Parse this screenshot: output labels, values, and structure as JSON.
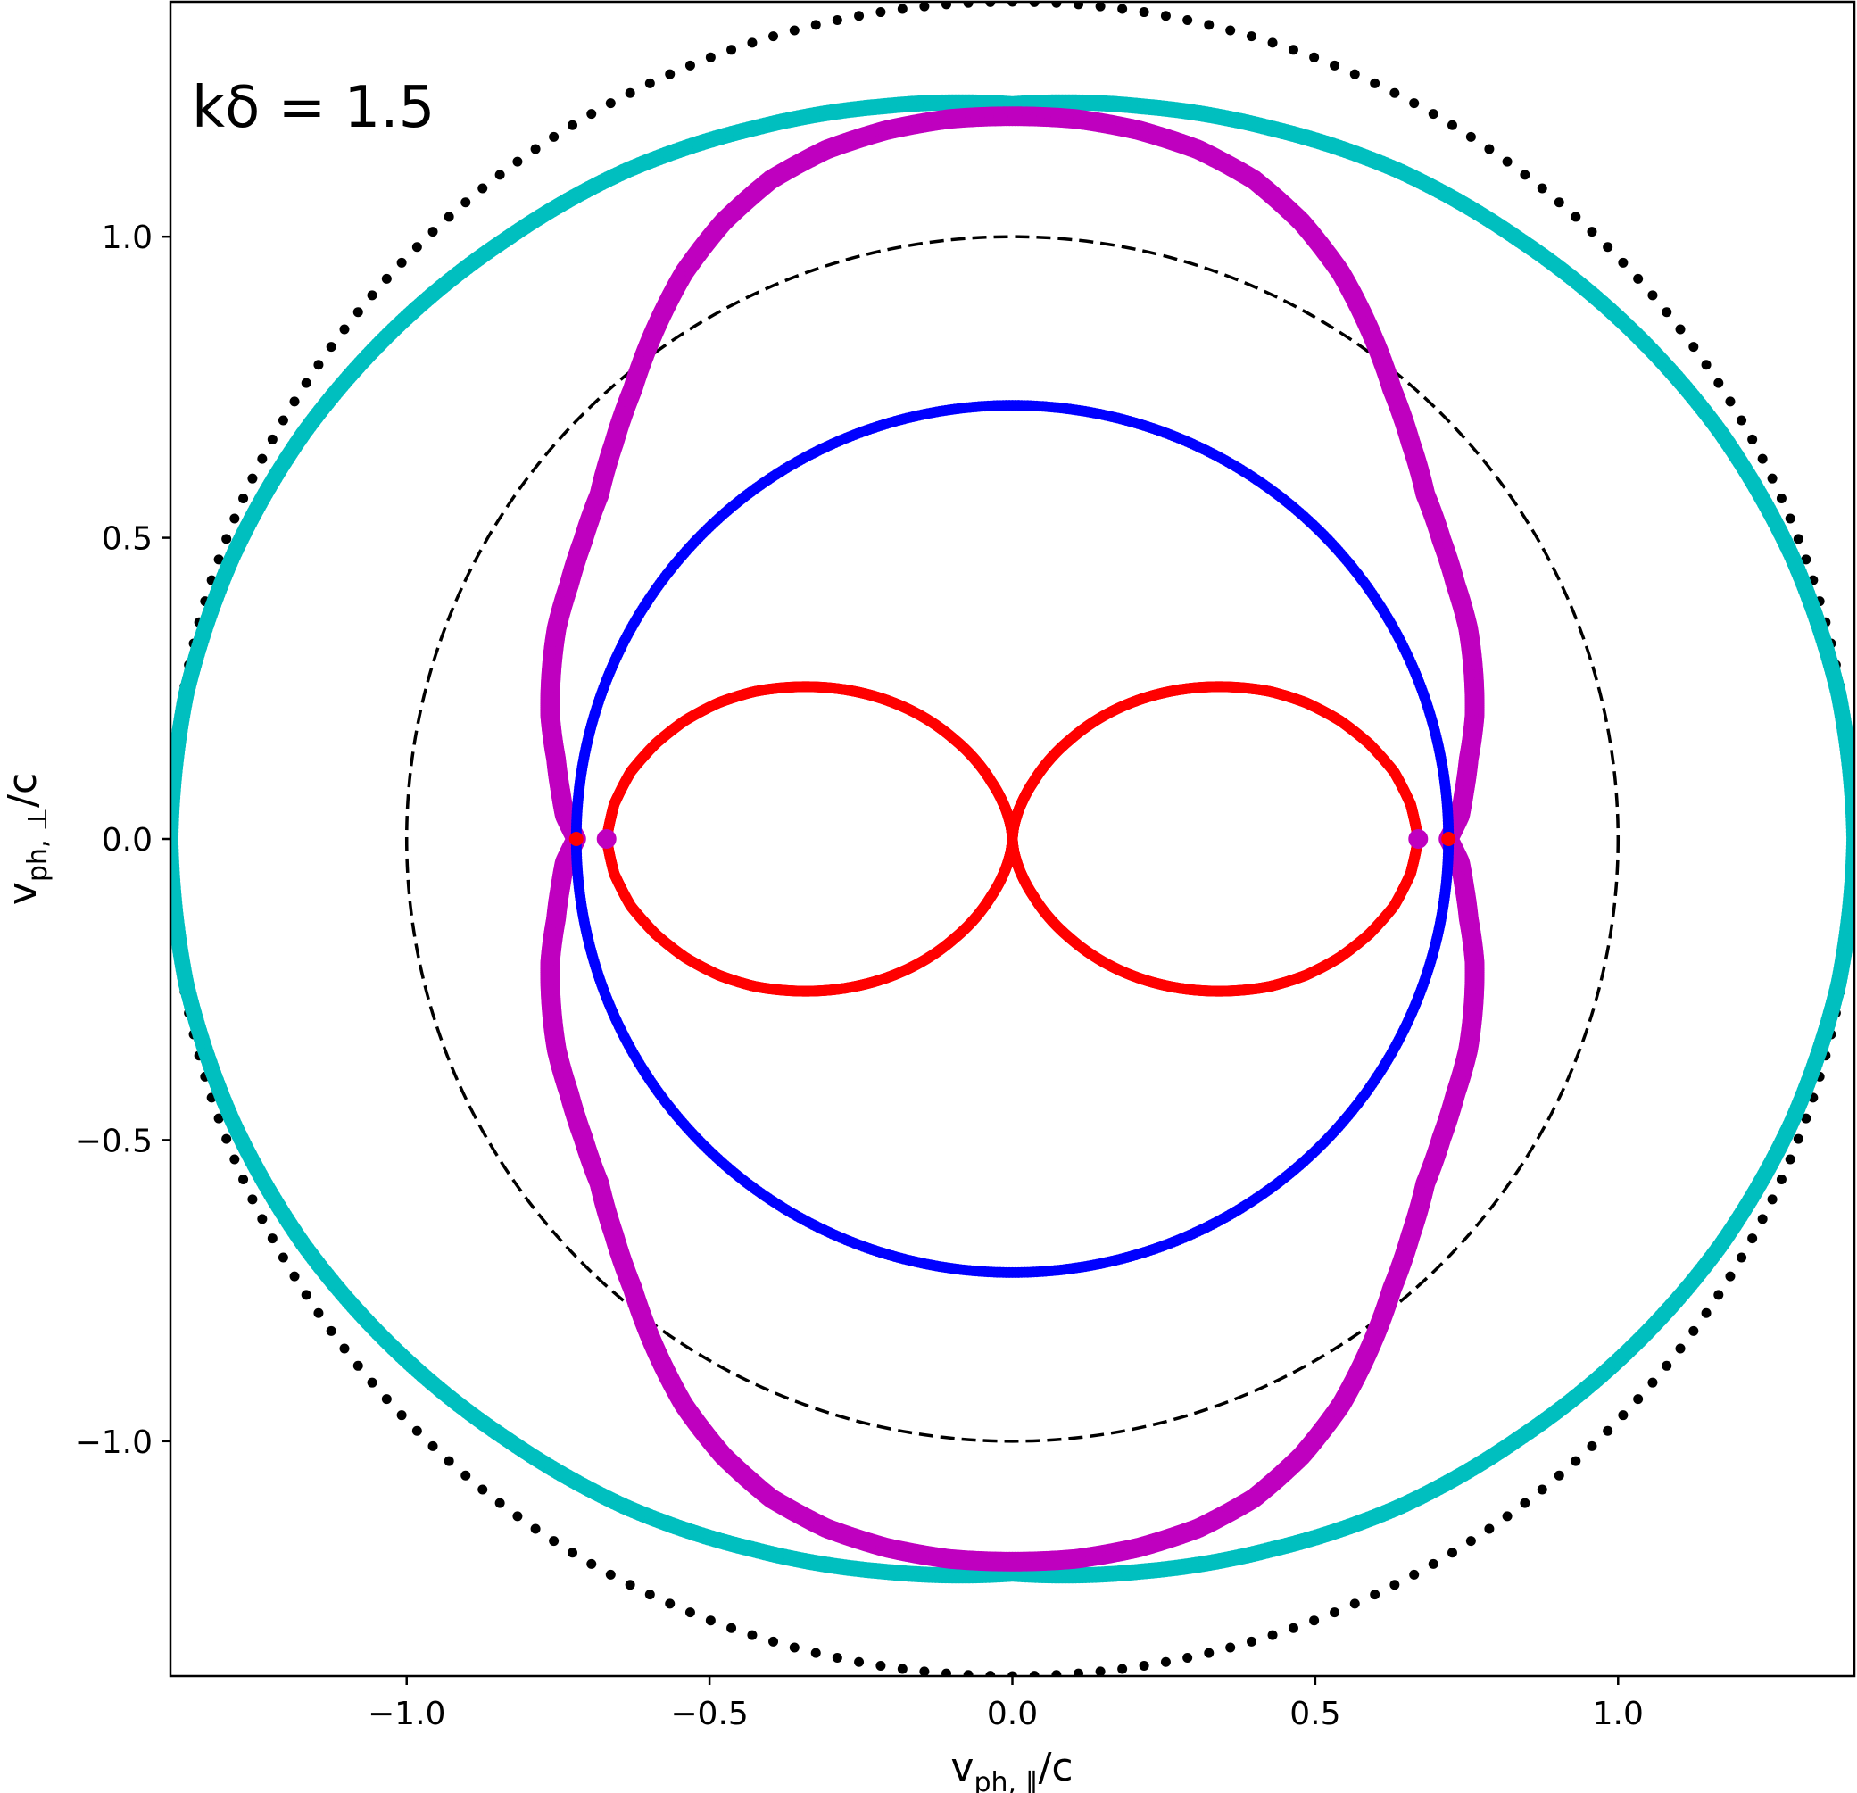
{
  "chart_data": {
    "type": "scatter",
    "annotation": "kδ = 1.5",
    "xlabel_base": "v",
    "xlabel_sub": "ph, ∥",
    "xlabel_tail": "/c",
    "ylabel_base": "v",
    "ylabel_sub": "ph, ⊥",
    "ylabel_tail": "/c",
    "xlim": [
      -1.39,
      1.39
    ],
    "ylim": [
      -1.39,
      1.39
    ],
    "xticks": [
      -1.0,
      -0.5,
      0.0,
      0.5,
      1.0
    ],
    "yticks": [
      -1.0,
      -0.5,
      0.0,
      0.5,
      1.0
    ],
    "xtick_labels": [
      "−1.0",
      "−0.5",
      "0.0",
      "0.5",
      "1.0"
    ],
    "ytick_labels": [
      "−1.0",
      "−0.5",
      "0.0",
      "0.5",
      "1.0"
    ],
    "grid": false,
    "legend": "none",
    "colors": {
      "black_dots": "#000000",
      "cyan": "#00bfbf",
      "magenta": "#bf00bf",
      "blue": "#0000ff",
      "red": "#ff0000",
      "dashed": "#000000"
    },
    "curves": [
      {
        "id": "outer-black-dotted",
        "color": "#000000",
        "marker": "dot",
        "shape": "circle",
        "radius": 1.39,
        "dot_count": 240
      },
      {
        "id": "cyan-curve",
        "color": "#00bfbf",
        "marker": "thick-dots",
        "shape": "polar-points",
        "angle_deg": [
          0,
          10,
          20,
          30,
          40,
          50,
          60,
          70,
          80,
          90,
          100,
          110,
          120,
          130,
          140,
          150,
          160,
          170,
          180
        ],
        "radius": [
          1.39,
          1.385,
          1.37,
          1.35,
          1.325,
          1.3,
          1.28,
          1.255,
          1.235,
          1.22,
          1.235,
          1.255,
          1.28,
          1.3,
          1.325,
          1.35,
          1.37,
          1.385,
          1.39
        ]
      },
      {
        "id": "magenta-curve",
        "color": "#bf00bf",
        "marker": "thick-dots",
        "shape": "polar-points",
        "angle_deg": [
          0,
          3,
          6,
          10,
          15,
          20,
          25,
          30,
          35,
          40,
          45,
          50,
          55,
          60,
          65,
          70,
          75,
          80,
          85,
          90,
          95,
          100,
          105,
          110,
          115,
          120,
          125,
          130,
          135,
          140,
          145,
          150,
          155,
          160,
          165,
          170,
          174,
          177,
          180
        ],
        "radius": [
          0.72,
          0.74,
          0.75,
          0.765,
          0.79,
          0.81,
          0.83,
          0.845,
          0.865,
          0.89,
          0.93,
          0.975,
          1.03,
          1.085,
          1.13,
          1.165,
          1.185,
          1.195,
          1.2,
          1.2,
          1.2,
          1.195,
          1.185,
          1.165,
          1.13,
          1.085,
          1.03,
          0.975,
          0.93,
          0.89,
          0.865,
          0.845,
          0.83,
          0.81,
          0.79,
          0.765,
          0.75,
          0.74,
          0.72
        ]
      },
      {
        "id": "blue-circle",
        "color": "#0000ff",
        "marker": "dots",
        "shape": "circle",
        "radius": 0.72
      },
      {
        "id": "red-lobes",
        "color": "#ff0000",
        "marker": "dots",
        "shape": "polar-points",
        "angle_deg": [
          0,
          5,
          10,
          15,
          20,
          25,
          30,
          35,
          40,
          45,
          50,
          55,
          60,
          65,
          70,
          75,
          80,
          85,
          90
        ],
        "radius": [
          0.67,
          0.66,
          0.64,
          0.61,
          0.575,
          0.535,
          0.49,
          0.44,
          0.39,
          0.34,
          0.29,
          0.24,
          0.19,
          0.145,
          0.1,
          0.065,
          0.035,
          0.012,
          0.0
        ]
      },
      {
        "id": "dashed-unit-circle",
        "color": "#000000",
        "marker": "dashed-line",
        "shape": "circle",
        "radius": 1.0
      }
    ],
    "special_points": [
      {
        "x": -0.72,
        "y": 0.0,
        "color": "#ff0000"
      },
      {
        "x": 0.72,
        "y": 0.0,
        "color": "#ff0000"
      },
      {
        "x": -0.67,
        "y": 0.0,
        "color": "#bf00bf"
      },
      {
        "x": 0.67,
        "y": 0.0,
        "color": "#bf00bf"
      }
    ]
  }
}
